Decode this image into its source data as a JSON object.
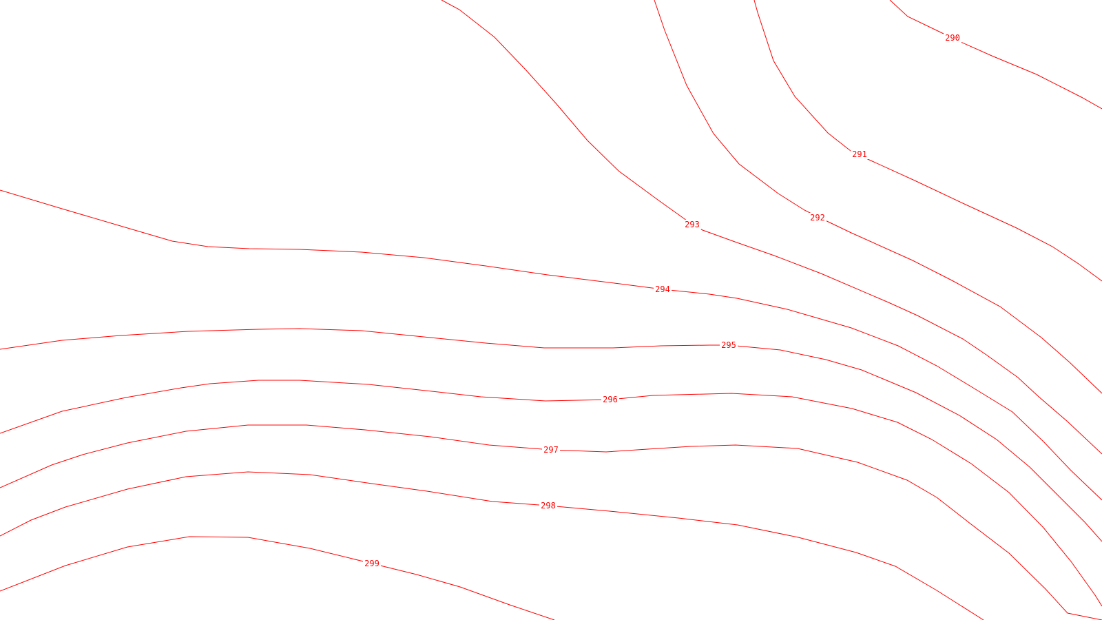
{
  "map": {
    "line_color": "#ff0000",
    "background": "#ffffff",
    "contours": [
      {
        "value": "290"
      },
      {
        "value": "291"
      },
      {
        "value": "292"
      },
      {
        "value": "293"
      },
      {
        "value": "294"
      },
      {
        "value": "295"
      },
      {
        "value": "296"
      },
      {
        "value": "297"
      },
      {
        "value": "298"
      },
      {
        "value": "299"
      }
    ]
  }
}
